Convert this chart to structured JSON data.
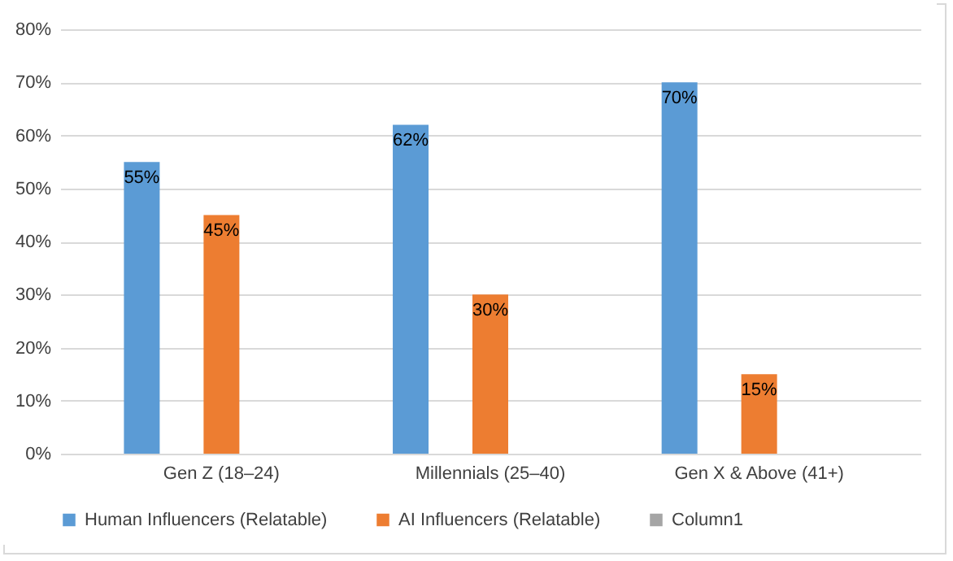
{
  "chart_data": {
    "type": "bar",
    "categories": [
      "Gen Z (18–24)",
      "Millennials (25–40)",
      "Gen X & Above (41+)"
    ],
    "series": [
      {
        "name": "Human Influencers (Relatable)",
        "color": "#5b9bd5",
        "values": [
          55,
          62,
          70
        ],
        "value_labels": [
          "55%",
          "62%",
          "70%"
        ]
      },
      {
        "name": "AI Influencers (Relatable)",
        "color": "#ed7d31",
        "values": [
          45,
          30,
          15
        ],
        "value_labels": [
          "45%",
          "30%",
          "15%"
        ]
      },
      {
        "name": "Column1",
        "color": "#a5a5a5",
        "values": [
          null,
          null,
          null
        ]
      }
    ],
    "ylim": [
      0,
      80
    ],
    "yticks": [
      {
        "value": 0,
        "label": "0%"
      },
      {
        "value": 10,
        "label": "10%"
      },
      {
        "value": 20,
        "label": "20%"
      },
      {
        "value": 30,
        "label": "30%"
      },
      {
        "value": 40,
        "label": "40%"
      },
      {
        "value": 50,
        "label": "50%"
      },
      {
        "value": 60,
        "label": "60%"
      },
      {
        "value": 70,
        "label": "70%"
      },
      {
        "value": 80,
        "label": "80%"
      }
    ],
    "grid": "y",
    "legend": "bottom"
  }
}
